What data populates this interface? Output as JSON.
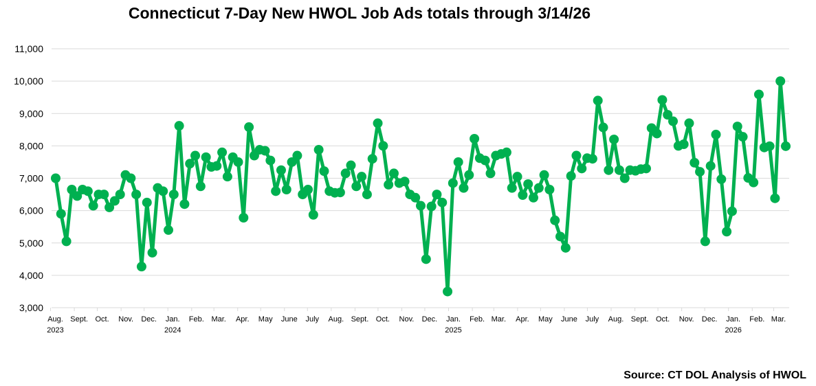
{
  "chart_data": {
    "type": "line",
    "title": "Connecticut 7-Day New HWOL Job Ads totals through 3/14/26",
    "source": "Source: CT DOL Analysis of HWOL",
    "frequency": "weekly",
    "x_end": "2026-03-14",
    "ylim": [
      3000,
      11000
    ],
    "yticks": [
      3000,
      4000,
      5000,
      6000,
      7000,
      8000,
      9000,
      10000,
      11000
    ],
    "ytick_labels": [
      "3,000",
      "4,000",
      "5,000",
      "6,000",
      "7,000",
      "8,000",
      "9,000",
      "10,000",
      "11,000"
    ],
    "grid": true,
    "legend": "none",
    "line_color": "#00B050",
    "month_labels": [
      {
        "date": "2023-08",
        "label": "Aug.",
        "year": "2023"
      },
      {
        "date": "2023-09",
        "label": "Sept."
      },
      {
        "date": "2023-10",
        "label": "Oct."
      },
      {
        "date": "2023-11",
        "label": "Nov."
      },
      {
        "date": "2023-12",
        "label": "Dec."
      },
      {
        "date": "2024-01",
        "label": "Jan.",
        "year": "2024"
      },
      {
        "date": "2024-02",
        "label": "Feb."
      },
      {
        "date": "2024-03",
        "label": "Mar."
      },
      {
        "date": "2024-04",
        "label": "Apr."
      },
      {
        "date": "2024-05",
        "label": "May"
      },
      {
        "date": "2024-06",
        "label": "June"
      },
      {
        "date": "2024-07",
        "label": "July"
      },
      {
        "date": "2024-08",
        "label": "Aug."
      },
      {
        "date": "2024-09",
        "label": "Sept."
      },
      {
        "date": "2024-10",
        "label": "Oct."
      },
      {
        "date": "2024-11",
        "label": "Nov."
      },
      {
        "date": "2024-12",
        "label": "Dec."
      },
      {
        "date": "2025-01",
        "label": "Jan.",
        "year": "2025"
      },
      {
        "date": "2025-02",
        "label": "Feb."
      },
      {
        "date": "2025-03",
        "label": "Mar."
      },
      {
        "date": "2025-04",
        "label": "Apr."
      },
      {
        "date": "2025-05",
        "label": "May"
      },
      {
        "date": "2025-06",
        "label": "June"
      },
      {
        "date": "2025-07",
        "label": "July"
      },
      {
        "date": "2025-08",
        "label": "Aug."
      },
      {
        "date": "2025-09",
        "label": "Sept."
      },
      {
        "date": "2025-10",
        "label": "Oct."
      },
      {
        "date": "2025-11",
        "label": "Nov."
      },
      {
        "date": "2025-12",
        "label": "Dec."
      },
      {
        "date": "2026-01",
        "label": "Jan.",
        "year": "2026"
      },
      {
        "date": "2026-02",
        "label": "Feb."
      },
      {
        "date": "2026-03",
        "label": "Mar."
      }
    ],
    "values": [
      7000,
      5900,
      5050,
      6650,
      6450,
      6650,
      6600,
      6150,
      6500,
      6500,
      6100,
      6300,
      6500,
      7100,
      7000,
      6500,
      4270,
      6250,
      4700,
      6700,
      6600,
      5400,
      6500,
      8620,
      6200,
      7450,
      7700,
      6750,
      7650,
      7350,
      7380,
      7800,
      7050,
      7650,
      7500,
      5780,
      8580,
      7700,
      7880,
      7850,
      7550,
      6600,
      7250,
      6650,
      7500,
      7700,
      6500,
      6650,
      5870,
      7880,
      7220,
      6600,
      6550,
      6560,
      7150,
      7400,
      6750,
      7050,
      6500,
      7600,
      8700,
      8000,
      6800,
      7150,
      6850,
      6900,
      6500,
      6400,
      6150,
      4500,
      6130,
      6500,
      6250,
      3500,
      6850,
      7500,
      6700,
      7100,
      8220,
      7620,
      7550,
      7150,
      7700,
      7750,
      7800,
      6700,
      7050,
      6480,
      6820,
      6400,
      6700,
      7100,
      6650,
      5700,
      5200,
      4850,
      7070,
      7700,
      7300,
      7620,
      7600,
      9400,
      8570,
      7250,
      8200,
      7250,
      7000,
      7250,
      7230,
      7280,
      7300,
      8550,
      8380,
      9420,
      8960,
      8760,
      8000,
      8050,
      8700,
      7480,
      7200,
      5050,
      7380,
      8350,
      6970,
      5350,
      5980,
      8600,
      8280,
      7010,
      6870,
      9590,
      7950,
      7990,
      6380,
      10000,
      7990
    ]
  }
}
